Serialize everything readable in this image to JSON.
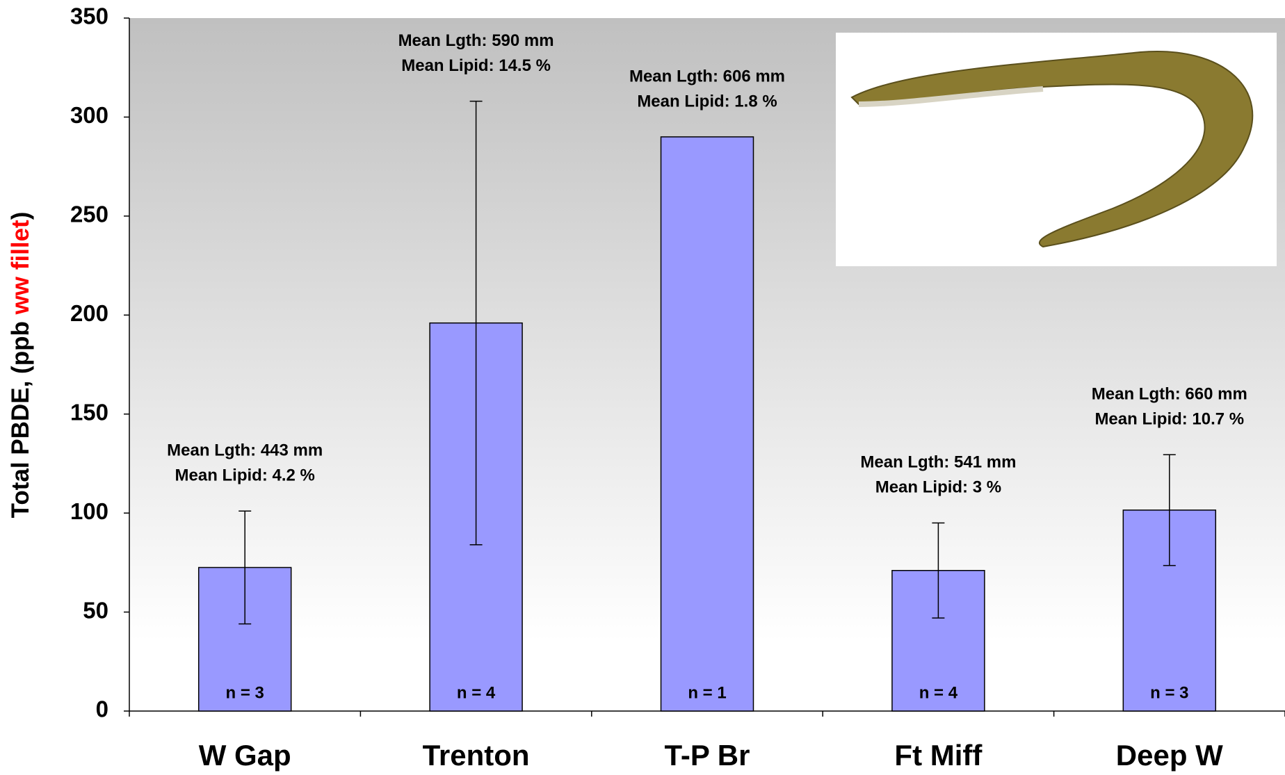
{
  "chart_data": {
    "type": "bar",
    "y_label_parts": [
      {
        "text": "Total PBDE, (ppb ",
        "color": "#000000"
      },
      {
        "text": "ww fillet",
        "color": "#ff0000"
      },
      {
        "text": ")",
        "color": "#000000"
      }
    ],
    "categories": [
      "W Gap",
      "Trenton",
      "T-P Br",
      "Ft Miff",
      "Deep W"
    ],
    "values": [
      72.5,
      196,
      290,
      71,
      101.5
    ],
    "errors": [
      28.5,
      112,
      null,
      24,
      28
    ],
    "color": "#9999ff",
    "annotations": [
      [
        "Mean Lgth: 443 mm",
        "Mean Lipid: 4.2 %"
      ],
      [
        "Mean Lgth: 590 mm",
        "Mean Lipid: 14.5 %"
      ],
      [
        "Mean Lgth: 606 mm",
        "Mean Lipid: 1.8 %"
      ],
      [
        "Mean Lgth: 541 mm",
        "Mean Lipid: 3 %"
      ],
      [
        "Mean Lgth: 660 mm",
        "Mean Lipid: 10.7 %"
      ]
    ],
    "n_labels": [
      "n = 3",
      "n = 4",
      "n = 1",
      "n = 4",
      "n = 3"
    ],
    "ylim": [
      0,
      350
    ],
    "yticks": [
      0,
      50,
      100,
      150,
      200,
      250,
      300,
      350
    ]
  }
}
